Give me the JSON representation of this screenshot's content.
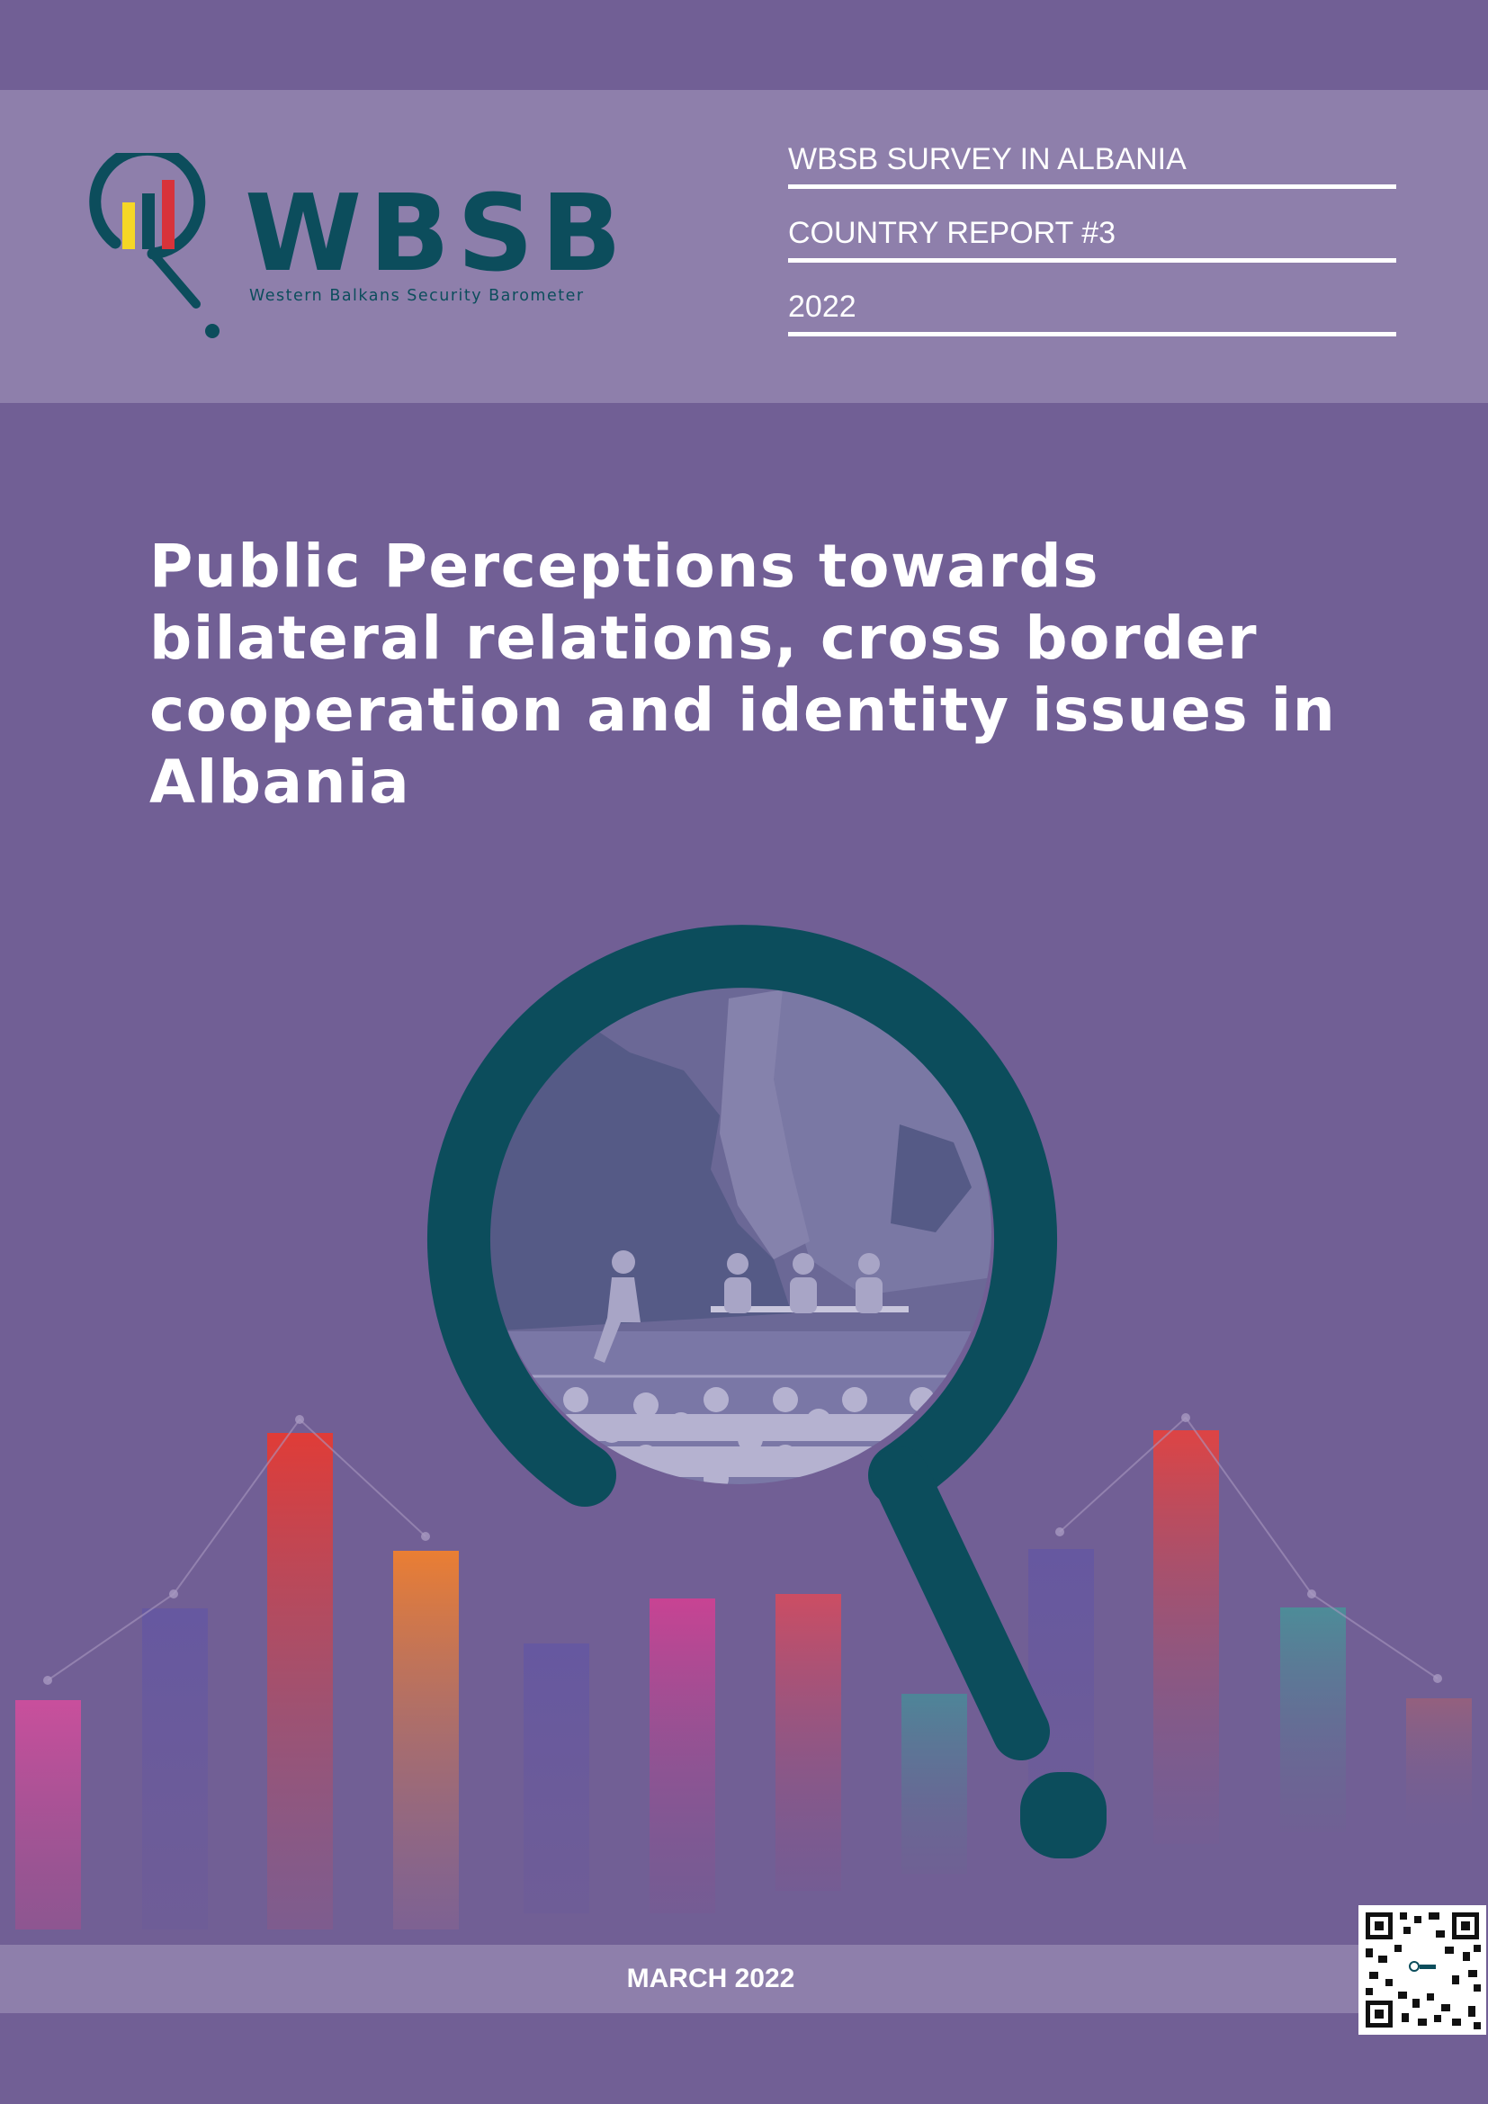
{
  "header": {
    "logo": {
      "wordmark": "WBSB",
      "tagline": "Western Balkans Security Barometer"
    },
    "meta": [
      "WBSB SURVEY IN ALBANIA",
      "COUNTRY REPORT #3",
      "2022"
    ]
  },
  "title": "Public Perceptions towards bilateral relations, cross border cooperation and identity issues in Albania",
  "footer": {
    "date": "MARCH 2022"
  },
  "colors": {
    "background": "#715f95",
    "band": "#8e7fab",
    "brand": "#0c4d5c",
    "text": "#ffffff"
  },
  "icons": [
    "magnifier-logo-icon",
    "magnifier-icon",
    "qr-code-icon"
  ]
}
